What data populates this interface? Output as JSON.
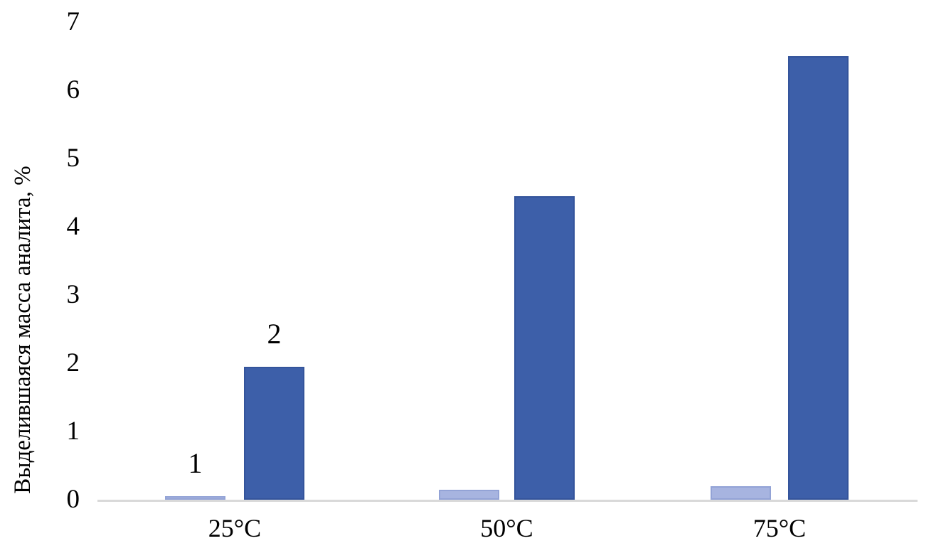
{
  "chart_data": {
    "type": "bar",
    "title": "",
    "xlabel": "",
    "ylabel": "Выделившаяся масса аналита, %",
    "categories": [
      "25°C",
      "50°C",
      "75°C"
    ],
    "series": [
      {
        "name": "1",
        "values": [
          0.05,
          0.15,
          0.2
        ],
        "color": "#a7b4e0",
        "border_color": "#93a3d6"
      },
      {
        "name": "2",
        "values": [
          1.95,
          4.45,
          6.5
        ],
        "color": "#3d5fa9",
        "border_color": "#34549b"
      }
    ],
    "ylim": [
      0,
      7
    ],
    "yticks": [
      0,
      1,
      2,
      3,
      4,
      5,
      6,
      7
    ],
    "grid": false,
    "legend_position": "none",
    "axis_line_color": "#d9d9d9",
    "text_color": "#000000",
    "background_color": "#ffffff",
    "annotations": [
      {
        "text": "1",
        "series": 0,
        "category": 0,
        "position": "above-bar"
      },
      {
        "text": "2",
        "series": 1,
        "category": 0,
        "position": "above-bar"
      }
    ]
  }
}
